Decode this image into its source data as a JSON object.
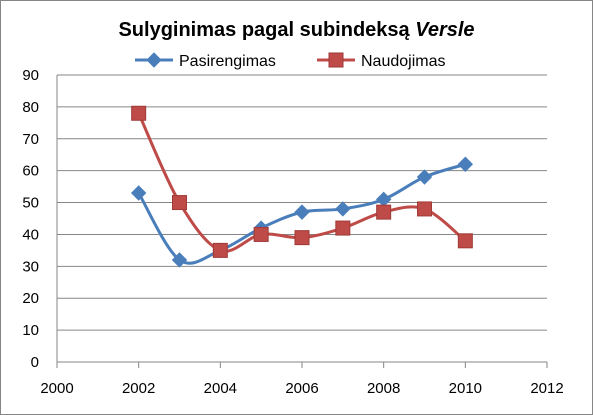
{
  "chart_data": {
    "type": "line",
    "title_main": "Sulyginimas pagal subindeksą ",
    "title_italic": "Versle",
    "xlabel": "",
    "ylabel": "",
    "xlim": [
      2000,
      2012
    ],
    "ylim": [
      0,
      90
    ],
    "x_ticks": [
      2000,
      2002,
      2004,
      2006,
      2008,
      2010,
      2012
    ],
    "y_ticks": [
      0,
      10,
      20,
      30,
      40,
      50,
      60,
      70,
      80,
      90
    ],
    "grid": "horizontal",
    "legend_position": "top",
    "series": [
      {
        "name": "Pasirengimas",
        "color": "#4A7EBB",
        "marker": "diamond",
        "x": [
          2002,
          2003,
          2004,
          2005,
          2006,
          2007,
          2008,
          2009,
          2010
        ],
        "values": [
          53,
          32,
          35,
          42,
          47,
          48,
          51,
          58,
          62
        ]
      },
      {
        "name": "Naudojimas",
        "color": "#BE4B48",
        "marker": "square",
        "x": [
          2002,
          2003,
          2004,
          2005,
          2006,
          2007,
          2008,
          2009,
          2010
        ],
        "values": [
          78,
          50,
          35,
          40,
          39,
          42,
          47,
          48,
          38
        ]
      }
    ]
  }
}
